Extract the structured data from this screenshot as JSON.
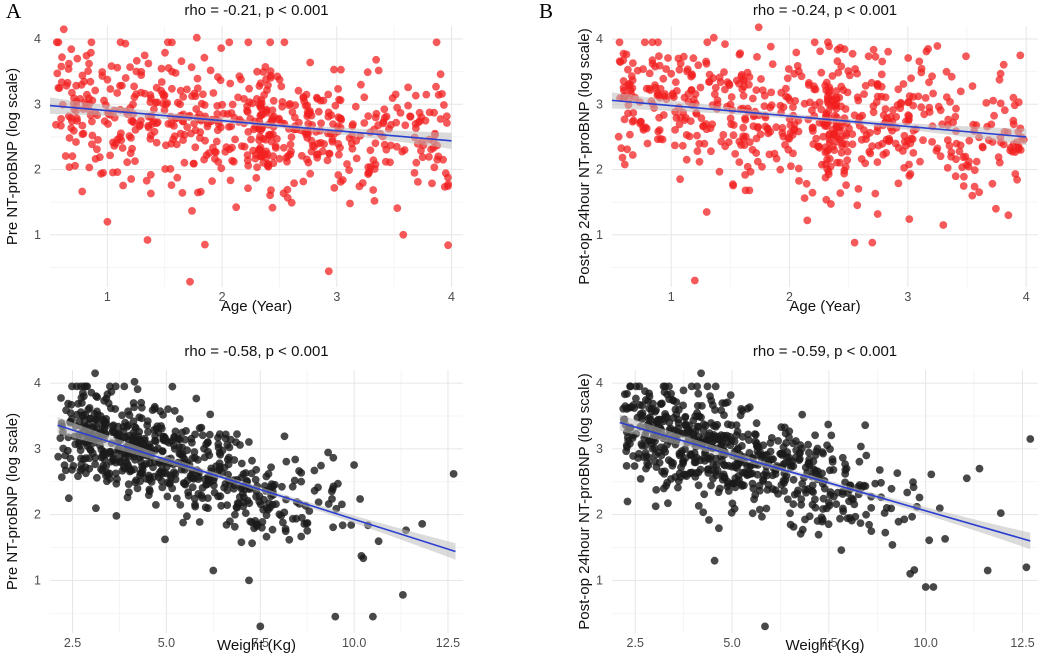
{
  "figure": {
    "panel_labels": [
      "A",
      "B"
    ],
    "colors": {
      "red_points": "#f21f1f",
      "black_points": "#1a1a1a",
      "fit_line": "#2b3fd0",
      "ci_band": "#bdbdbd"
    }
  },
  "chart_data": [
    {
      "type": "scatter",
      "title": "rho = -0.21, p < 0.001",
      "xlabel": "Age (Year)",
      "ylabel": "Pre NT-proBNP (log scale)",
      "xlim": [
        0.5,
        4.1
      ],
      "ylim": [
        0.2,
        4.2
      ],
      "xticks": [
        1,
        2,
        3,
        4
      ],
      "xtick_labels": [
        "1",
        "2",
        "3",
        "4"
      ],
      "yticks": [
        1,
        2,
        3,
        4
      ],
      "ytick_labels": [
        "1",
        "2",
        "3",
        "4"
      ],
      "fit": {
        "x": [
          0.5,
          4.0
        ],
        "y": [
          2.98,
          2.44
        ]
      },
      "seed": 11,
      "n": 620,
      "mode": "age",
      "outliers": [
        [
          0.62,
          4.15
        ],
        [
          1.78,
          4.02
        ],
        [
          3.87,
          3.95
        ],
        [
          1.72,
          0.28
        ],
        [
          2.93,
          0.44
        ],
        [
          1.85,
          0.85
        ],
        [
          1.35,
          0.92
        ],
        [
          3.97,
          0.84
        ],
        [
          1.0,
          1.2
        ],
        [
          3.58,
          1.0
        ]
      ]
    },
    {
      "type": "scatter",
      "title": "rho = -0.24, p < 0.001",
      "xlabel": "Age (Year)",
      "ylabel": "Post-op 24hour NT-proBNP (log scale)",
      "xlim": [
        0.5,
        4.1
      ],
      "ylim": [
        0.2,
        4.2
      ],
      "xticks": [
        1,
        2,
        3,
        4
      ],
      "xtick_labels": [
        "1",
        "2",
        "3",
        "4"
      ],
      "yticks": [
        1,
        2,
        3,
        4
      ],
      "ytick_labels": [
        "1",
        "2",
        "3",
        "4"
      ],
      "fit": {
        "x": [
          0.5,
          4.0
        ],
        "y": [
          3.06,
          2.5
        ]
      },
      "seed": 23,
      "n": 640,
      "mode": "age",
      "outliers": [
        [
          1.74,
          4.18
        ],
        [
          1.36,
          4.02
        ],
        [
          3.95,
          3.75
        ],
        [
          1.2,
          0.3
        ],
        [
          2.7,
          0.88
        ],
        [
          2.15,
          1.22
        ],
        [
          1.3,
          1.35
        ],
        [
          3.3,
          1.15
        ],
        [
          2.55,
          0.88
        ],
        [
          3.85,
          1.3
        ]
      ]
    },
    {
      "type": "scatter",
      "title": "rho = -0.58, p < 0.001",
      "xlabel": "Weight (Kg)",
      "ylabel": "Pre NT-proBNP (log scale)",
      "xlim": [
        1.9,
        12.9
      ],
      "ylim": [
        0.2,
        4.2
      ],
      "xticks": [
        2.5,
        5,
        7.5,
        10,
        12.5
      ],
      "xtick_labels": [
        "2.5",
        "5.0",
        "7.5",
        "10.0",
        "12.5"
      ],
      "yticks": [
        1,
        2,
        3,
        4
      ],
      "ytick_labels": [
        "1",
        "2",
        "3",
        "4"
      ],
      "fit": {
        "x": [
          2.1,
          12.7
        ],
        "y": [
          3.36,
          1.44
        ]
      },
      "seed": 37,
      "n": 620,
      "mode": "weight",
      "outliers": [
        [
          3.1,
          4.15
        ],
        [
          4.15,
          4.02
        ],
        [
          7.5,
          0.3
        ],
        [
          9.5,
          0.45
        ],
        [
          10.5,
          0.45
        ],
        [
          6.25,
          1.15
        ],
        [
          11.3,
          0.78
        ],
        [
          12.65,
          2.62
        ],
        [
          2.4,
          2.25
        ],
        [
          7.2,
          1.0
        ]
      ]
    },
    {
      "type": "scatter",
      "title": "rho = -0.59, p < 0.001",
      "xlabel": "Weight (Kg)",
      "ylabel": "Post-op 24hour NT-proBNP (log scale)",
      "xlim": [
        1.9,
        12.9
      ],
      "ylim": [
        0.2,
        4.2
      ],
      "xticks": [
        2.5,
        5,
        7.5,
        10,
        12.5
      ],
      "xtick_labels": [
        "2.5",
        "5.0",
        "7.5",
        "10.0",
        "12.5"
      ],
      "yticks": [
        1,
        2,
        3,
        4
      ],
      "ytick_labels": [
        "1",
        "2",
        "3",
        "4"
      ],
      "fit": {
        "x": [
          2.1,
          12.7
        ],
        "y": [
          3.4,
          1.6
        ]
      },
      "seed": 53,
      "n": 640,
      "mode": "weight",
      "outliers": [
        [
          4.2,
          4.15
        ],
        [
          5.85,
          0.3
        ],
        [
          10.0,
          0.9
        ],
        [
          10.2,
          0.9
        ],
        [
          12.7,
          3.15
        ],
        [
          12.6,
          1.2
        ],
        [
          4.55,
          1.3
        ],
        [
          2.3,
          2.2
        ],
        [
          9.6,
          1.1
        ],
        [
          11.6,
          1.15
        ]
      ]
    }
  ]
}
